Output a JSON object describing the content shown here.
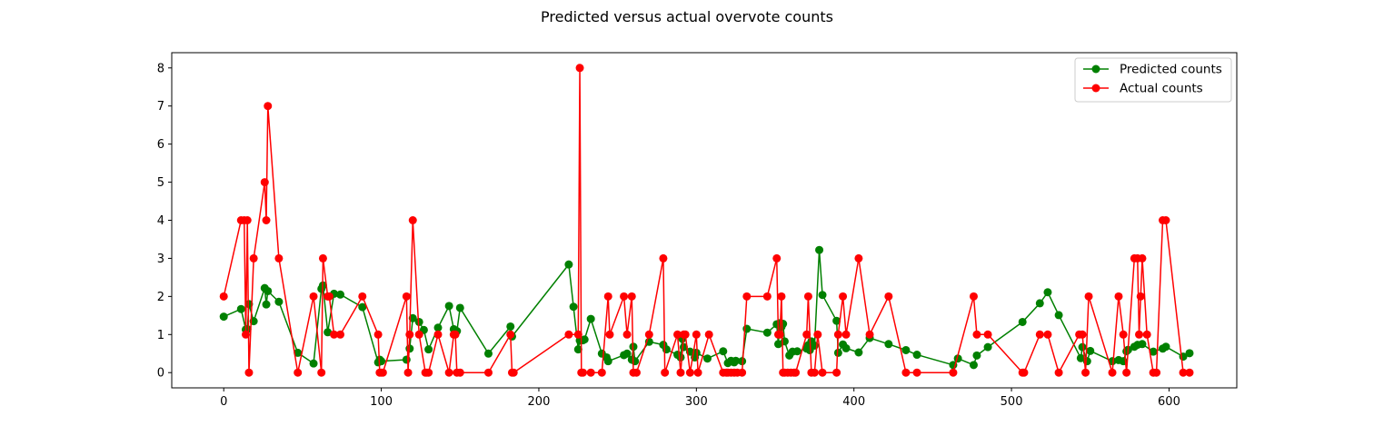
{
  "chart_data": {
    "type": "line",
    "title": "Predicted versus actual overvote counts",
    "xlabel": "",
    "ylabel": "",
    "xlim": [
      -33,
      643
    ],
    "ylim": [
      -0.4,
      8.4
    ],
    "xticks": [
      0,
      100,
      200,
      300,
      400,
      500,
      600
    ],
    "yticks": [
      0,
      1,
      2,
      3,
      4,
      5,
      6,
      7,
      8
    ],
    "grid": false,
    "legend_position": "top-right",
    "series": [
      {
        "name": "Predicted counts",
        "color": "#008000",
        "marker": "circle",
        "x": [
          0,
          11,
          14,
          15,
          16,
          19,
          26,
          27,
          28,
          35,
          47,
          57,
          62,
          63,
          66,
          70,
          74,
          88,
          98,
          99,
          100,
          116,
          118,
          120,
          124,
          127,
          130,
          136,
          143,
          146,
          148,
          150,
          168,
          182,
          183,
          219,
          222,
          225,
          226,
          228,
          229,
          233,
          240,
          243,
          244,
          254,
          256,
          259,
          260,
          261,
          270,
          279,
          281,
          288,
          290,
          291,
          292,
          296,
          299,
          300,
          307,
          317,
          320,
          322,
          324,
          325,
          329,
          332,
          345,
          351,
          352,
          353,
          354,
          355,
          356,
          359,
          361,
          364,
          370,
          371,
          372,
          373,
          375,
          378,
          380,
          389,
          390,
          393,
          395,
          403,
          410,
          422,
          433,
          440,
          463,
          466,
          476,
          478,
          485,
          507,
          518,
          523,
          530,
          544,
          545,
          548,
          550,
          564,
          568,
          571,
          573,
          574,
          578,
          580,
          583,
          590,
          596,
          598,
          609,
          613
        ],
        "y": [
          1.47,
          1.67,
          1.13,
          1.14,
          1.8,
          1.35,
          2.22,
          1.79,
          2.14,
          1.86,
          0.52,
          0.24,
          2.2,
          2.29,
          1.06,
          2.07,
          2.05,
          1.72,
          0.27,
          0.34,
          0.3,
          0.34,
          0.63,
          1.43,
          1.33,
          1.12,
          0.61,
          1.18,
          1.75,
          1.14,
          1.09,
          1.7,
          0.5,
          1.21,
          0.95,
          2.84,
          1.73,
          0.61,
          0.84,
          0.85,
          0.87,
          1.41,
          0.5,
          0.4,
          0.3,
          0.46,
          0.5,
          0.34,
          0.68,
          0.3,
          0.81,
          0.73,
          0.61,
          0.47,
          0.4,
          0.89,
          0.67,
          0.55,
          0.4,
          0.52,
          0.37,
          0.56,
          0.25,
          0.31,
          0.27,
          0.31,
          0.3,
          1.15,
          1.05,
          1.27,
          0.75,
          1.3,
          1.2,
          1.28,
          0.82,
          0.45,
          0.55,
          0.56,
          0.63,
          0.72,
          0.59,
          0.82,
          0.71,
          3.22,
          2.04,
          1.36,
          0.52,
          0.74,
          0.64,
          0.53,
          0.91,
          0.75,
          0.59,
          0.47,
          0.2,
          0.37,
          0.2,
          0.45,
          0.67,
          1.33,
          1.82,
          2.11,
          1.51,
          0.38,
          0.67,
          0.3,
          0.57,
          0.3,
          0.33,
          0.3,
          0.56,
          0.6,
          0.68,
          0.73,
          0.75,
          0.55,
          0.63,
          0.68,
          0.42,
          0.51
        ]
      },
      {
        "name": "Actual counts",
        "color": "#ff0000",
        "marker": "circle",
        "x": [
          0,
          11,
          13,
          14,
          15,
          16,
          19,
          26,
          27,
          28,
          35,
          47,
          57,
          62,
          63,
          66,
          67,
          70,
          74,
          88,
          98,
          99,
          100,
          101,
          116,
          117,
          118,
          120,
          124,
          128,
          129,
          130,
          136,
          143,
          146,
          147,
          148,
          150,
          168,
          182,
          183,
          184,
          219,
          225,
          226,
          227,
          228,
          233,
          240,
          244,
          245,
          254,
          256,
          259,
          260,
          262,
          270,
          279,
          280,
          288,
          290,
          292,
          293,
          296,
          300,
          301,
          308,
          317,
          319,
          320,
          322,
          324,
          326,
          329,
          332,
          345,
          351,
          352,
          353,
          354,
          355,
          356,
          358,
          360,
          362,
          363,
          370,
          371,
          373,
          375,
          377,
          380,
          389,
          390,
          393,
          395,
          403,
          410,
          422,
          433,
          440,
          463,
          476,
          478,
          485,
          507,
          508,
          518,
          523,
          530,
          543,
          545,
          547,
          549,
          564,
          568,
          571,
          573,
          578,
          580,
          581,
          582,
          583,
          586,
          590,
          592,
          596,
          598,
          609,
          613
        ],
        "y": [
          2,
          4,
          4,
          1,
          4,
          0,
          3,
          5,
          4,
          7,
          3,
          0,
          2,
          0,
          3,
          2,
          2,
          1,
          1,
          2,
          1,
          0,
          0,
          0,
          2,
          0,
          1,
          4,
          1,
          0,
          0,
          0,
          1,
          0,
          1,
          1,
          0,
          0,
          0,
          1,
          0,
          0,
          1,
          1,
          8,
          0,
          0,
          0,
          0,
          2,
          1,
          2,
          1,
          2,
          0,
          0,
          1,
          3,
          0,
          1,
          0,
          1,
          1,
          0,
          1,
          0,
          1,
          0,
          0,
          0,
          0,
          0,
          0,
          0,
          2,
          2,
          3,
          1,
          1,
          2,
          0,
          0,
          0,
          0,
          0,
          0,
          1,
          2,
          0,
          0,
          1,
          0,
          0,
          1,
          2,
          1,
          3,
          1,
          2,
          0,
          0,
          0,
          2,
          1,
          1,
          0,
          0,
          1,
          1,
          0,
          1,
          1,
          0,
          2,
          0,
          2,
          1,
          0,
          3,
          3,
          1,
          2,
          3,
          1,
          0,
          0,
          4,
          4,
          0,
          0
        ]
      }
    ]
  }
}
